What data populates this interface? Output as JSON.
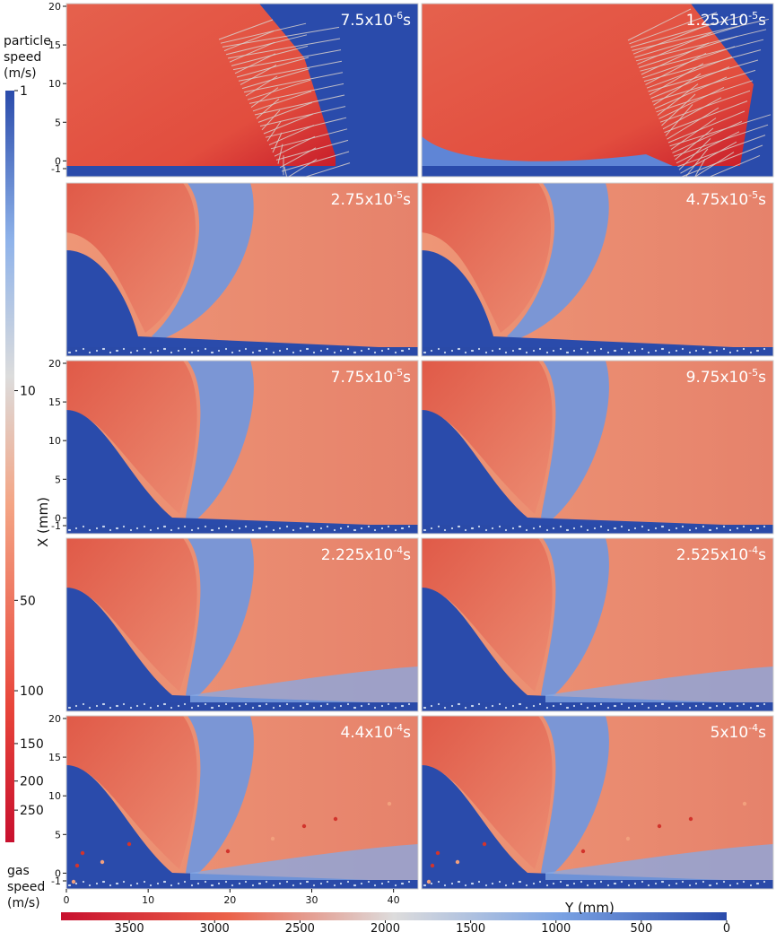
{
  "chart_data": {
    "type": "heatmap",
    "grid": {
      "rows": 5,
      "cols": 2
    },
    "panels": [
      {
        "time_base": "7.5x10",
        "time_exp": "-6",
        "time_unit": "s"
      },
      {
        "time_base": "1.25x10",
        "time_exp": "-5",
        "time_unit": "s"
      },
      {
        "time_base": "2.75x10",
        "time_exp": "-5",
        "time_unit": "s"
      },
      {
        "time_base": "4.75x10",
        "time_exp": "-5",
        "time_unit": "s"
      },
      {
        "time_base": "7.75x10",
        "time_exp": "-5",
        "time_unit": "s"
      },
      {
        "time_base": "9.75x10",
        "time_exp": "-5",
        "time_unit": "s"
      },
      {
        "time_base": "2.225x10",
        "time_exp": "-4",
        "time_unit": "s"
      },
      {
        "time_base": "2.525x10",
        "time_exp": "-4",
        "time_unit": "s"
      },
      {
        "time_base": "4.4x10",
        "time_exp": "-4",
        "time_unit": "s"
      },
      {
        "time_base": "5x10",
        "time_exp": "-4",
        "time_unit": "s"
      }
    ],
    "y_axis": {
      "label": "X (mm)",
      "ticks": [
        "20",
        "15",
        "10",
        "5",
        "0",
        "-1"
      ],
      "tick_values": [
        20,
        15,
        10,
        5,
        0,
        -1
      ],
      "range": [
        -1,
        20
      ]
    },
    "x_axis": {
      "label": "Y (mm)",
      "ticks": [
        "0",
        "10",
        "20",
        "30",
        "40"
      ],
      "tick_values": [
        0,
        10,
        20,
        30,
        40
      ],
      "range": [
        0,
        43
      ]
    },
    "particle_colorbar": {
      "label_lines": [
        "particle",
        "speed",
        "(m/s)"
      ],
      "ticks": [
        "1",
        "10",
        "50",
        "100",
        "150",
        "200",
        "250"
      ],
      "tick_values": [
        1,
        10,
        50,
        100,
        150,
        200,
        250
      ],
      "scale": "log",
      "colors": [
        "#2a4bab",
        "#4c7bd8",
        "#dddcdc",
        "#f08268",
        "#ce1b2a"
      ]
    },
    "gas_colorbar": {
      "label_lines": [
        "gas",
        "speed",
        "(m/s)"
      ],
      "ticks": [
        "3500",
        "3000",
        "2500",
        "2000",
        "1500",
        "1000",
        "500",
        "0"
      ],
      "tick_values": [
        3500,
        3000,
        2500,
        2000,
        1500,
        1000,
        500,
        0
      ],
      "range": [
        3900,
        0
      ],
      "colors": [
        "#c8102e",
        "#e8543e",
        "#f4a585",
        "#dcdcdc",
        "#a9c7f0",
        "#5b87da",
        "#2a4bab"
      ]
    }
  }
}
